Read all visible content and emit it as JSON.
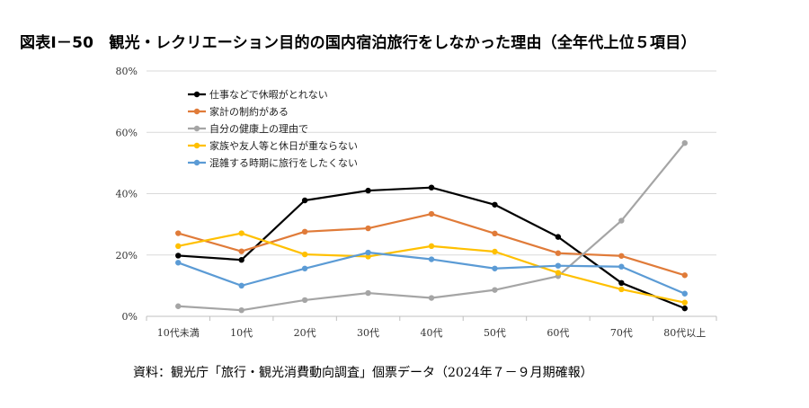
{
  "title": "図表Ⅰ－50　観光・レクリエーション目的の国内宿泊旅行をしなかった理由（全年代上位５項目）",
  "source": "資料：観光庁「旅行・観光消費動向調査」個票データ（2024年７－９月期確報）",
  "chart_data": {
    "type": "line",
    "categories": [
      "10代未満",
      "10代",
      "20代",
      "30代",
      "40代",
      "50代",
      "60代",
      "70代",
      "80代以上"
    ],
    "ylim": [
      0,
      80
    ],
    "yticks": [
      0,
      20,
      40,
      60,
      80
    ],
    "ytick_labels": [
      "0%",
      "20%",
      "40%",
      "60%",
      "80%"
    ],
    "grid": true,
    "legend_position": "top-left",
    "series": [
      {
        "name": "仕事などで休暇がとれない",
        "color": "#000000",
        "values": [
          19.8,
          18.4,
          37.8,
          41.0,
          42.0,
          36.4,
          25.9,
          10.9,
          2.6
        ]
      },
      {
        "name": "家計の制約がある",
        "color": "#E07B39",
        "values": [
          27.1,
          21.2,
          27.6,
          28.7,
          33.4,
          27.0,
          20.6,
          19.7,
          13.4
        ]
      },
      {
        "name": "自分の健康上の理由で",
        "color": "#A5A5A5",
        "values": [
          3.3,
          2.0,
          5.3,
          7.6,
          6.0,
          8.6,
          13.1,
          31.2,
          56.5
        ]
      },
      {
        "name": "家族や友人等と休日が重ならない",
        "color": "#FFC000",
        "values": [
          22.9,
          27.1,
          20.2,
          19.5,
          22.9,
          21.1,
          14.2,
          8.8,
          4.5
        ]
      },
      {
        "name": "混雑する時期に旅行をしたくない",
        "color": "#5B9BD5",
        "values": [
          17.5,
          10.0,
          15.6,
          20.8,
          18.6,
          15.6,
          16.5,
          16.2,
          7.4
        ]
      }
    ]
  }
}
